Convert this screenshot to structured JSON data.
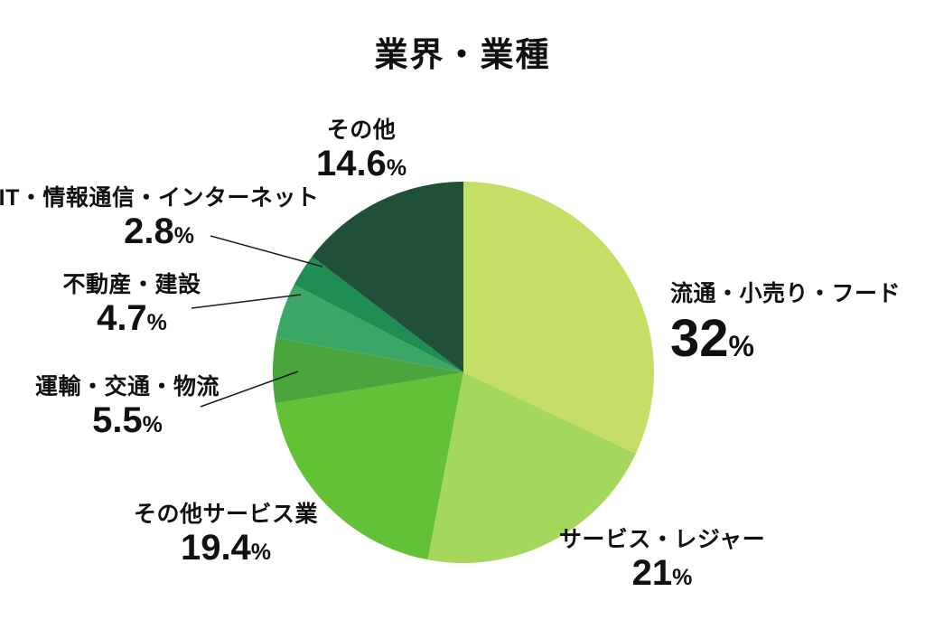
{
  "chart_data": {
    "type": "pie",
    "title": "業界・業種",
    "unit": "%",
    "start_angle_deg": 0,
    "direction": "clockwise",
    "legend_position": "none",
    "labels_outside": true,
    "background_color": "#ffffff",
    "slices": [
      {
        "label": "流通・小売り・フード",
        "value": 32,
        "display": "32",
        "color": "#c5de65"
      },
      {
        "label": "サービス・レジャー",
        "value": 21,
        "display": "21",
        "color": "#a4d75b"
      },
      {
        "label": "その他サービス業",
        "value": 19.4,
        "display": "19.4",
        "color": "#63c135"
      },
      {
        "label": "運輸・交通・物流",
        "value": 5.5,
        "display": "5.5",
        "color": "#4aa63c"
      },
      {
        "label": "不動産・建設",
        "value": 4.7,
        "display": "4.7",
        "color": "#3aa767"
      },
      {
        "label": "IT・情報通信・インターネット",
        "value": 2.8,
        "display": "2.8",
        "color": "#1e8e53"
      },
      {
        "label": "その他",
        "value": 14.6,
        "display": "14.6",
        "color": "#215039"
      }
    ]
  }
}
